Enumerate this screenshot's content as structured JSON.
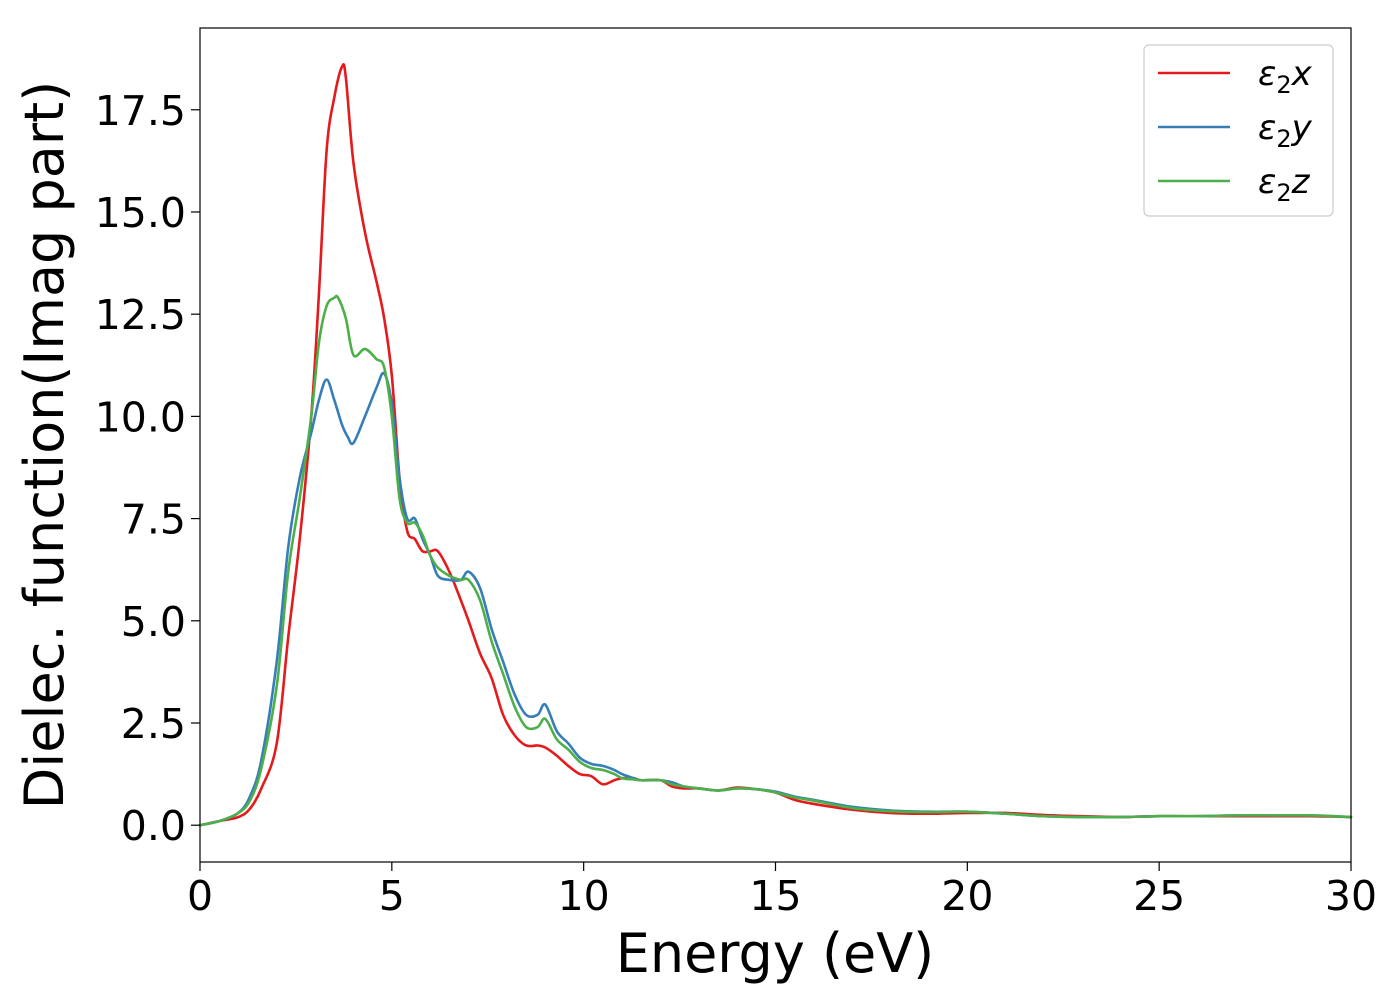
{
  "chart_data": {
    "type": "line",
    "title": "",
    "xlabel": "Energy (eV)",
    "ylabel": "Dielec. function(Imag part)",
    "xlim": [
      0,
      30
    ],
    "ylim": [
      -0.9,
      19.5
    ],
    "xticks": [
      0,
      5,
      10,
      15,
      20,
      25,
      30
    ],
    "xtick_labels": [
      "0",
      "5",
      "10",
      "15",
      "20",
      "25",
      "30"
    ],
    "yticks": [
      0.0,
      2.5,
      5.0,
      7.5,
      10.0,
      12.5,
      15.0,
      17.5
    ],
    "ytick_labels": [
      "0.0",
      "2.5",
      "5.0",
      "7.5",
      "10.0",
      "12.5",
      "15.0",
      "17.5"
    ],
    "grid": false,
    "legend": {
      "position": "top-right",
      "entries": [
        {
          "main": "ε",
          "sub": "2",
          "suffix": "x",
          "color": "#e41a1c"
        },
        {
          "main": "ε",
          "sub": "2",
          "suffix": "y",
          "color": "#377eb8"
        },
        {
          "main": "ε",
          "sub": "2",
          "suffix": "z",
          "color": "#4daf4a"
        }
      ]
    },
    "series": [
      {
        "color": "#e41a1c",
        "x": [
          0,
          0.5,
          1.0,
          1.3,
          1.6,
          2.0,
          2.3,
          2.6,
          2.9,
          3.1,
          3.3,
          3.5,
          3.7,
          3.8,
          4.0,
          4.3,
          4.6,
          4.8,
          5.0,
          5.2,
          5.4,
          5.6,
          5.8,
          6.0,
          6.2,
          6.5,
          6.8,
          7.0,
          7.3,
          7.6,
          7.9,
          8.2,
          8.5,
          8.8,
          9.0,
          9.3,
          9.6,
          9.9,
          10.2,
          10.5,
          10.8,
          11.0,
          11.3,
          11.5,
          12.0,
          12.3,
          12.6,
          13.0,
          13.5,
          14.0,
          14.5,
          15.0,
          15.5,
          16.0,
          17.0,
          18.0,
          19.0,
          20.0,
          21.0,
          22.0,
          23.0,
          24.0,
          25.0,
          26.0,
          27.0,
          28.0,
          29.0,
          30.0
        ],
        "values": [
          0.0,
          0.1,
          0.2,
          0.4,
          0.9,
          2.0,
          4.6,
          7.0,
          10.0,
          13.0,
          16.5,
          17.8,
          18.55,
          18.3,
          16.2,
          14.5,
          13.3,
          12.4,
          11.0,
          8.5,
          7.2,
          7.0,
          6.7,
          6.7,
          6.7,
          6.2,
          5.5,
          5.0,
          4.2,
          3.6,
          2.7,
          2.2,
          1.95,
          1.95,
          1.9,
          1.7,
          1.45,
          1.25,
          1.2,
          1.0,
          1.1,
          1.15,
          1.15,
          1.1,
          1.1,
          0.95,
          0.9,
          0.9,
          0.85,
          0.92,
          0.88,
          0.8,
          0.62,
          0.52,
          0.38,
          0.3,
          0.28,
          0.3,
          0.3,
          0.25,
          0.22,
          0.2,
          0.22,
          0.22,
          0.22,
          0.22,
          0.22,
          0.2
        ]
      },
      {
        "color": "#377eb8",
        "x": [
          0,
          0.5,
          1.0,
          1.3,
          1.6,
          2.0,
          2.3,
          2.6,
          2.9,
          3.1,
          3.3,
          3.5,
          3.7,
          3.85,
          4.0,
          4.3,
          4.6,
          4.8,
          5.0,
          5.2,
          5.4,
          5.6,
          5.8,
          6.0,
          6.2,
          6.5,
          6.8,
          7.0,
          7.3,
          7.6,
          7.9,
          8.2,
          8.5,
          8.8,
          9.0,
          9.3,
          9.6,
          9.9,
          10.2,
          10.5,
          10.8,
          11.0,
          11.3,
          11.5,
          12.0,
          12.3,
          12.6,
          13.0,
          13.5,
          14.0,
          14.5,
          15.0,
          15.5,
          16.0,
          17.0,
          18.0,
          19.0,
          20.0,
          21.0,
          22.0,
          23.0,
          24.0,
          25.0,
          26.0,
          27.0,
          28.0,
          29.0,
          30.0
        ],
        "values": [
          0.0,
          0.1,
          0.3,
          0.7,
          1.6,
          4.0,
          6.8,
          8.5,
          9.6,
          10.4,
          10.9,
          10.4,
          9.8,
          9.5,
          9.35,
          10.0,
          10.7,
          11.05,
          10.3,
          8.5,
          7.5,
          7.5,
          7.0,
          6.6,
          6.1,
          6.0,
          6.0,
          6.2,
          5.8,
          4.8,
          4.0,
          3.2,
          2.7,
          2.7,
          2.95,
          2.3,
          2.0,
          1.65,
          1.5,
          1.45,
          1.35,
          1.25,
          1.15,
          1.1,
          1.1,
          1.05,
          0.95,
          0.9,
          0.85,
          0.9,
          0.88,
          0.82,
          0.7,
          0.62,
          0.45,
          0.36,
          0.33,
          0.33,
          0.28,
          0.22,
          0.2,
          0.2,
          0.22,
          0.22,
          0.24,
          0.24,
          0.24,
          0.2
        ]
      },
      {
        "color": "#4daf4a",
        "x": [
          0,
          0.5,
          1.0,
          1.3,
          1.6,
          2.0,
          2.3,
          2.6,
          2.9,
          3.1,
          3.3,
          3.5,
          3.6,
          3.8,
          4.0,
          4.3,
          4.6,
          4.8,
          5.0,
          5.2,
          5.4,
          5.6,
          5.8,
          6.0,
          6.2,
          6.5,
          6.8,
          7.0,
          7.3,
          7.6,
          7.9,
          8.2,
          8.5,
          8.8,
          9.0,
          9.3,
          9.6,
          9.9,
          10.2,
          10.5,
          10.8,
          11.0,
          11.3,
          11.5,
          12.0,
          12.3,
          12.6,
          13.0,
          13.5,
          14.0,
          14.5,
          15.0,
          15.5,
          16.0,
          17.0,
          18.0,
          19.0,
          20.0,
          21.0,
          22.0,
          23.0,
          24.0,
          25.0,
          26.0,
          27.0,
          28.0,
          29.0,
          30.0
        ],
        "values": [
          0.0,
          0.1,
          0.3,
          0.6,
          1.4,
          3.4,
          6.2,
          8.0,
          10.0,
          11.8,
          12.7,
          12.9,
          12.9,
          12.4,
          11.5,
          11.65,
          11.4,
          11.2,
          10.0,
          8.0,
          7.4,
          7.4,
          7.1,
          6.6,
          6.3,
          6.1,
          6.0,
          6.0,
          5.5,
          4.5,
          3.7,
          2.9,
          2.4,
          2.4,
          2.6,
          2.1,
          1.85,
          1.55,
          1.4,
          1.35,
          1.25,
          1.15,
          1.12,
          1.1,
          1.1,
          1.0,
          0.95,
          0.9,
          0.85,
          0.9,
          0.88,
          0.8,
          0.68,
          0.6,
          0.42,
          0.34,
          0.32,
          0.33,
          0.28,
          0.22,
          0.2,
          0.2,
          0.22,
          0.22,
          0.24,
          0.24,
          0.24,
          0.2
        ]
      }
    ]
  }
}
